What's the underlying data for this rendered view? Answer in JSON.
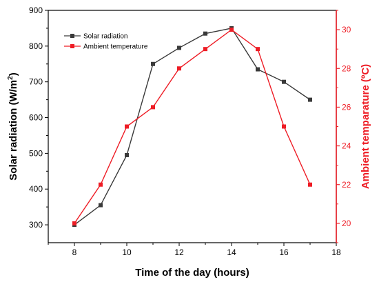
{
  "chart_data": {
    "type": "line",
    "xlabel": "Time of the day (hours)",
    "ylabel_left": {
      "base": "Solar radiation (W/m",
      "sup": "2",
      "close": ")"
    },
    "ylabel_right": "Ambient temparature (ºC)",
    "xlim": [
      7,
      18
    ],
    "xticks": [
      8,
      10,
      12,
      14,
      16,
      18
    ],
    "ylim_left": [
      250,
      900
    ],
    "yticks_left": [
      300,
      400,
      500,
      600,
      700,
      800,
      900
    ],
    "ylim_right": [
      19,
      31
    ],
    "yticks_right": [
      20,
      22,
      24,
      26,
      28,
      30
    ],
    "x": [
      8,
      9,
      10,
      11,
      12,
      13,
      14,
      15,
      16,
      17
    ],
    "series": [
      {
        "name": "Solar radiation",
        "axis": "left",
        "color": "#3a3a3a",
        "marker": "square",
        "values": [
          300,
          355,
          495,
          750,
          795,
          835,
          850,
          735,
          700,
          650
        ]
      },
      {
        "name": "Ambient temperature",
        "axis": "right",
        "color": "#ee1c25",
        "marker": "square",
        "values": [
          20,
          22,
          25,
          26,
          28,
          29,
          30,
          29,
          25,
          22
        ]
      }
    ],
    "legend": "top-left",
    "grid": false,
    "right_axis_color": "#ee1c25"
  }
}
